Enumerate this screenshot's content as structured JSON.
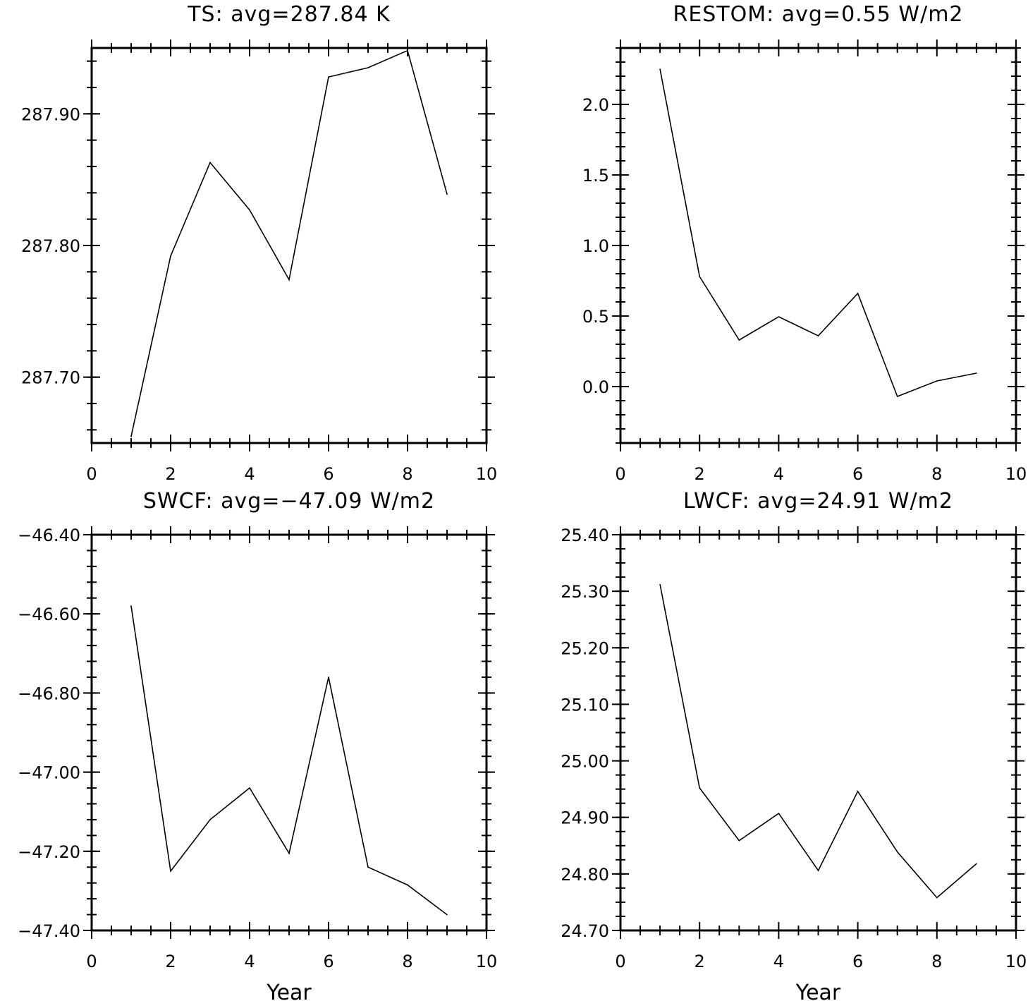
{
  "chart_data": [
    {
      "type": "line",
      "title": "TS: avg=287.84 K",
      "xlabel": "",
      "ylabel": "",
      "xlim": [
        0,
        10
      ],
      "ylim": [
        287.65,
        287.95
      ],
      "xticks": [
        "0",
        "2",
        "4",
        "6",
        "8",
        "10"
      ],
      "yticks": [
        "287.70",
        "287.80",
        "287.90"
      ],
      "grid": false,
      "series": [
        {
          "x": [
            1,
            2,
            3,
            4,
            5,
            6,
            7,
            8,
            9
          ],
          "values": [
            287.655,
            287.792,
            287.863,
            287.827,
            287.774,
            287.928,
            287.935,
            287.948,
            287.839
          ]
        }
      ]
    },
    {
      "type": "line",
      "title": "RESTOM: avg=0.55 W/m2",
      "xlabel": "",
      "ylabel": "",
      "xlim": [
        0,
        10
      ],
      "ylim": [
        -0.4,
        2.4
      ],
      "xticks": [
        "0",
        "2",
        "4",
        "6",
        "8",
        "10"
      ],
      "yticks": [
        "0.0",
        "0.5",
        "1.0",
        "1.5",
        "2.0"
      ],
      "grid": false,
      "series": [
        {
          "x": [
            1,
            2,
            3,
            4,
            5,
            6,
            7,
            8,
            9
          ],
          "values": [
            2.25,
            0.78,
            0.33,
            0.495,
            0.36,
            0.66,
            -0.07,
            0.04,
            0.095
          ]
        }
      ]
    },
    {
      "type": "line",
      "title": "SWCF: avg=−47.09 W/m2",
      "xlabel": "Year",
      "ylabel": "",
      "xlim": [
        0,
        10
      ],
      "ylim": [
        -47.4,
        -46.4
      ],
      "xticks": [
        "0",
        "2",
        "4",
        "6",
        "8",
        "10"
      ],
      "yticks": [
        "−46.40",
        "−46.60",
        "−46.80",
        "−47.00",
        "−47.20",
        "−47.40"
      ],
      "grid": false,
      "series": [
        {
          "x": [
            1,
            2,
            3,
            4,
            5,
            6,
            7,
            8,
            9
          ],
          "values": [
            -46.58,
            -47.25,
            -47.12,
            -47.04,
            -47.205,
            -46.76,
            -47.24,
            -47.285,
            -47.36
          ]
        }
      ]
    },
    {
      "type": "line",
      "title": "LWCF: avg=24.91 W/m2",
      "xlabel": "Year",
      "ylabel": "",
      "xlim": [
        0,
        10
      ],
      "ylim": [
        24.7,
        25.4
      ],
      "xticks": [
        "0",
        "2",
        "4",
        "6",
        "8",
        "10"
      ],
      "yticks": [
        "25.40",
        "25.30",
        "25.20",
        "25.10",
        "25.00",
        "24.90",
        "24.80",
        "24.70"
      ],
      "grid": false,
      "series": [
        {
          "x": [
            1,
            2,
            3,
            4,
            5,
            6,
            7,
            8,
            9
          ],
          "values": [
            25.312,
            24.952,
            24.859,
            24.907,
            24.806,
            24.946,
            24.839,
            24.758,
            24.818
          ]
        }
      ]
    }
  ]
}
